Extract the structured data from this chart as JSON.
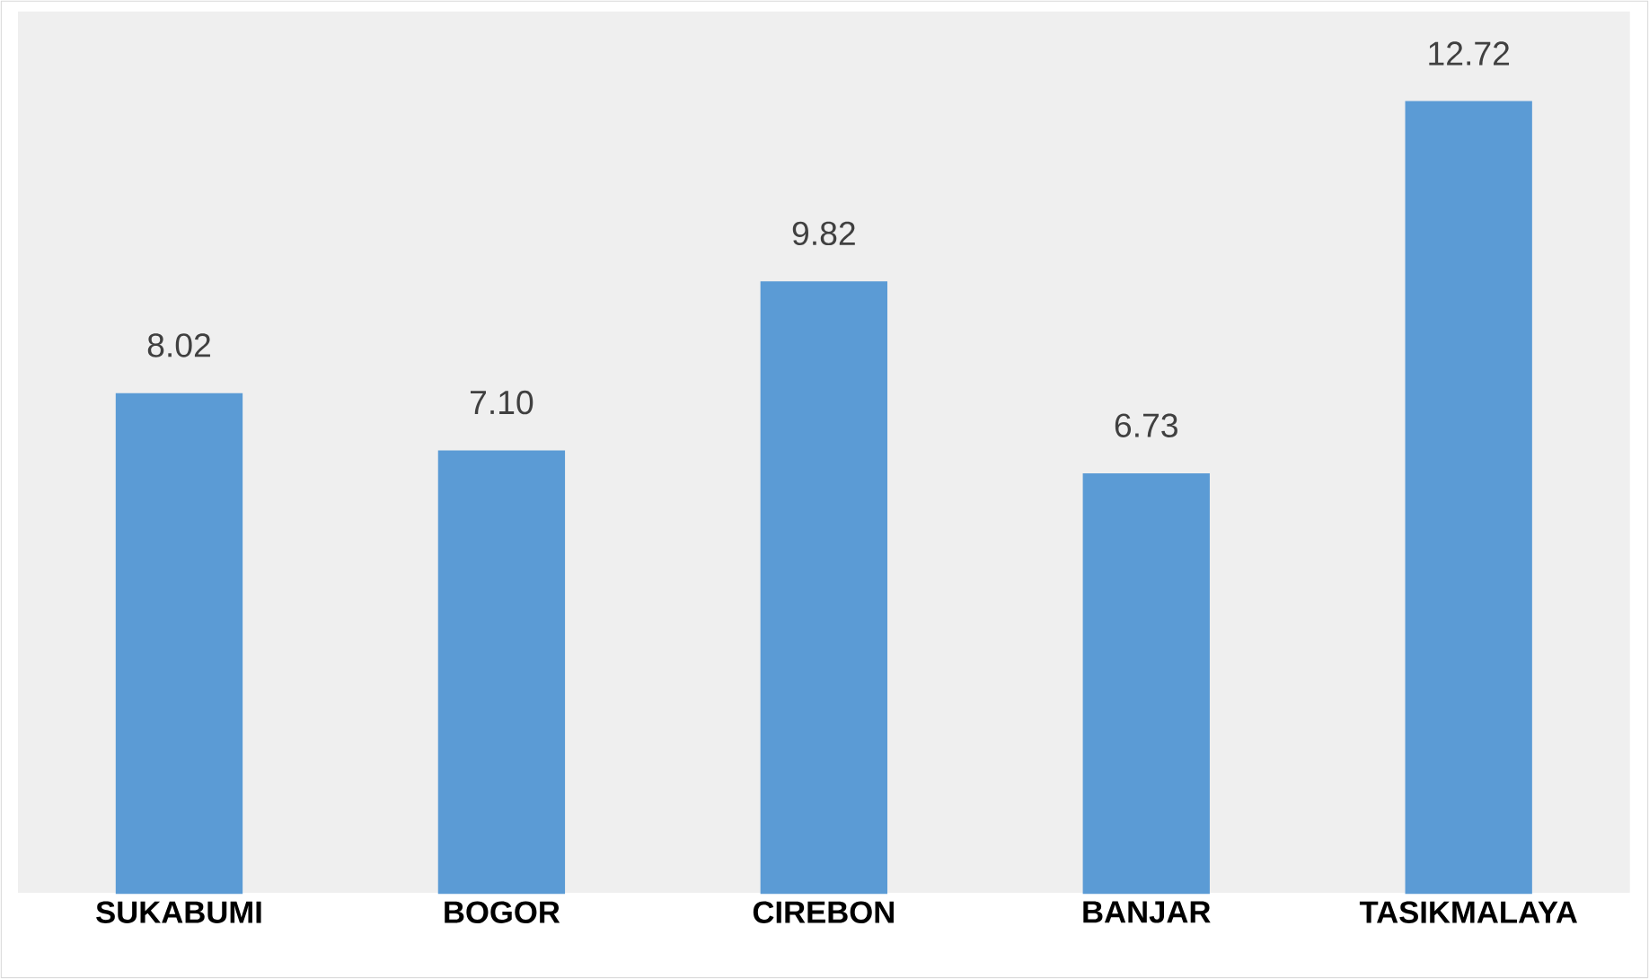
{
  "chart_data": {
    "type": "bar",
    "categories": [
      "SUKABUMI",
      "BOGOR",
      "CIREBON",
      "BANJAR",
      "TASIKMALAYA"
    ],
    "values": [
      8.02,
      7.1,
      9.82,
      6.73,
      12.72
    ],
    "value_labels": [
      "8.02",
      "7.10",
      "9.82",
      "6.73",
      "12.72"
    ],
    "color": "#5b9bd5"
  }
}
